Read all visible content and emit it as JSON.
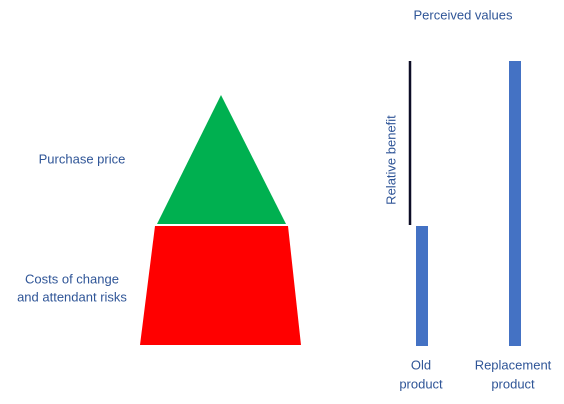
{
  "pyramid": {
    "top_label": "Purchase price",
    "bottom_label": [
      "Costs of change",
      "and attendant risks"
    ]
  },
  "panel": {
    "title": "Perceived values",
    "axis_label": "Relative benefit",
    "bars": [
      {
        "label": [
          "Old",
          "product"
        ]
      },
      {
        "label": [
          "Replacement",
          "product"
        ]
      }
    ]
  }
}
